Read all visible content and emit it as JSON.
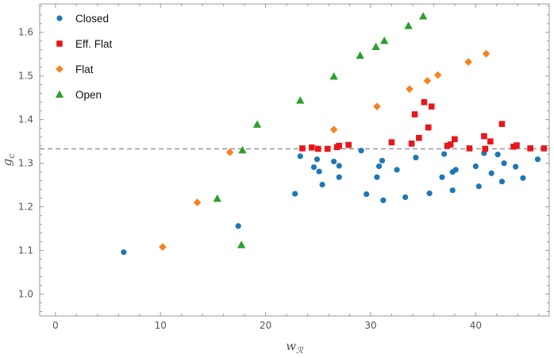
{
  "chart_data": {
    "type": "scatter",
    "xlabel": "w",
    "xlabel_sub": "ℛ",
    "ylabel": "g",
    "ylabel_sub": "c",
    "xlim": [
      -1.5,
      47
    ],
    "ylim": [
      0.95,
      1.665
    ],
    "x_ticks": [
      0,
      10,
      20,
      30,
      40
    ],
    "y_ticks": [
      1.0,
      1.1,
      1.2,
      1.3,
      1.4,
      1.5,
      1.6
    ],
    "x_tick_labels": [
      "0",
      "10",
      "20",
      "30",
      "40"
    ],
    "y_tick_labels": [
      "1.0",
      "1.1",
      "1.2",
      "1.3",
      "1.4",
      "1.5",
      "1.6"
    ],
    "reference_line": {
      "y": 1.333,
      "style": "dashed",
      "color": "#888888"
    },
    "legend_position": "top-left",
    "series": [
      {
        "name": "Closed",
        "marker": "circle",
        "color": "#1f77b4",
        "points": [
          [
            6.5,
            1.096
          ],
          [
            17.4,
            1.156
          ],
          [
            22.8,
            1.23
          ],
          [
            23.3,
            1.316
          ],
          [
            24.6,
            1.291
          ],
          [
            24.9,
            1.309
          ],
          [
            25.1,
            1.281
          ],
          [
            25.4,
            1.251
          ],
          [
            26.5,
            1.304
          ],
          [
            27.0,
            1.294
          ],
          [
            27.0,
            1.268
          ],
          [
            29.1,
            1.329
          ],
          [
            29.6,
            1.229
          ],
          [
            30.6,
            1.268
          ],
          [
            30.8,
            1.293
          ],
          [
            31.1,
            1.306
          ],
          [
            31.2,
            1.215
          ],
          [
            32.5,
            1.285
          ],
          [
            33.3,
            1.222
          ],
          [
            34.3,
            1.313
          ],
          [
            35.6,
            1.231
          ],
          [
            36.8,
            1.268
          ],
          [
            37.0,
            1.321
          ],
          [
            37.8,
            1.28
          ],
          [
            37.8,
            1.238
          ],
          [
            38.1,
            1.285
          ],
          [
            40.0,
            1.293
          ],
          [
            40.3,
            1.247
          ],
          [
            40.8,
            1.323
          ],
          [
            41.5,
            1.277
          ],
          [
            42.1,
            1.32
          ],
          [
            42.5,
            1.258
          ],
          [
            42.7,
            1.3
          ],
          [
            43.8,
            1.292
          ],
          [
            44.5,
            1.266
          ],
          [
            45.9,
            1.309
          ]
        ]
      },
      {
        "name": "Eff. Flat",
        "marker": "square",
        "color": "#e8161b",
        "points": [
          [
            23.5,
            1.334
          ],
          [
            24.4,
            1.336
          ],
          [
            25.0,
            1.333
          ],
          [
            25.9,
            1.333
          ],
          [
            26.8,
            1.337
          ],
          [
            27.0,
            1.34
          ],
          [
            27.9,
            1.342
          ],
          [
            32.0,
            1.348
          ],
          [
            33.9,
            1.345
          ],
          [
            34.2,
            1.412
          ],
          [
            34.6,
            1.358
          ],
          [
            35.1,
            1.44
          ],
          [
            35.5,
            1.382
          ],
          [
            35.8,
            1.43
          ],
          [
            37.3,
            1.34
          ],
          [
            37.6,
            1.343
          ],
          [
            38.0,
            1.355
          ],
          [
            39.4,
            1.334
          ],
          [
            40.8,
            1.362
          ],
          [
            40.9,
            1.333
          ],
          [
            41.4,
            1.35
          ],
          [
            42.5,
            1.39
          ],
          [
            43.6,
            1.338
          ],
          [
            43.9,
            1.341
          ],
          [
            45.2,
            1.334
          ],
          [
            46.5,
            1.334
          ]
        ]
      },
      {
        "name": "Flat",
        "marker": "diamond",
        "color": "#f7821d",
        "points": [
          [
            10.2,
            1.108
          ],
          [
            13.5,
            1.21
          ],
          [
            16.6,
            1.325
          ],
          [
            26.5,
            1.377
          ],
          [
            30.6,
            1.43
          ],
          [
            33.7,
            1.47
          ],
          [
            35.4,
            1.489
          ],
          [
            36.4,
            1.502
          ],
          [
            39.3,
            1.532
          ],
          [
            41.0,
            1.551
          ]
        ]
      },
      {
        "name": "Open",
        "marker": "triangle",
        "color": "#2ca02c",
        "points": [
          [
            15.4,
            1.219
          ],
          [
            17.7,
            1.113
          ],
          [
            17.8,
            1.33
          ],
          [
            19.2,
            1.389
          ],
          [
            23.3,
            1.444
          ],
          [
            26.5,
            1.499
          ],
          [
            29.0,
            1.547
          ],
          [
            30.5,
            1.567
          ],
          [
            31.3,
            1.581
          ],
          [
            33.6,
            1.615
          ],
          [
            35.0,
            1.637
          ]
        ]
      }
    ]
  }
}
